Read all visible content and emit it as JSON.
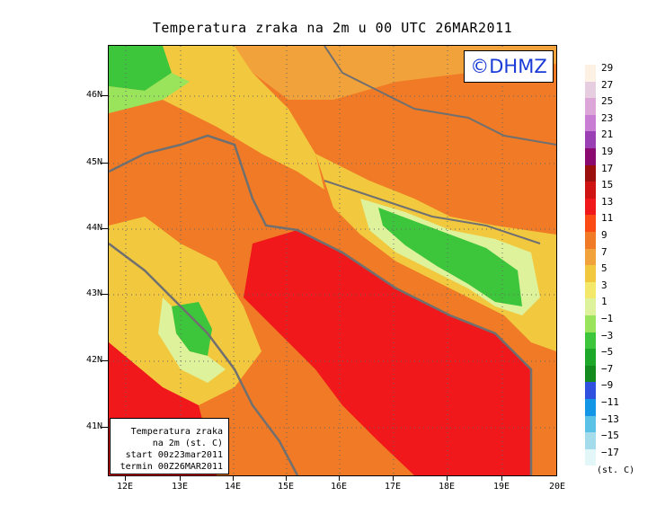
{
  "title": "Temperatura zraka na 2m u 00 UTC 26MAR2011",
  "logo": "©DHMZ",
  "info": [
    "Temperatura zraka",
    "na 2m (st. C)",
    "start 00z23mar2011",
    "termin 00Z26MAR2011"
  ],
  "lat_labels": [
    "46N",
    "45N",
    "44N",
    "43N",
    "42N",
    "41N"
  ],
  "lon_labels": [
    "12E",
    "13E",
    "14E",
    "15E",
    "16E",
    "17E",
    "18E",
    "19E",
    "20E"
  ],
  "legend": {
    "unit": "(st. C)",
    "levels": [
      "29",
      "27",
      "25",
      "23",
      "21",
      "19",
      "17",
      "15",
      "13",
      "11",
      "9",
      "7",
      "5",
      "3",
      "1",
      "−1",
      "−3",
      "−5",
      "−7",
      "−9",
      "−11",
      "−13",
      "−15",
      "−17"
    ],
    "colors": [
      "#fdf1e3",
      "#e6cde0",
      "#dda6d9",
      "#c77ed3",
      "#9b3fb4",
      "#8a0a6f",
      "#9c0f0f",
      "#cf1212",
      "#f0181a",
      "#fb4a13",
      "#f07a25",
      "#f2a23a",
      "#f2c83e",
      "#f3e86a",
      "#ddf29a",
      "#9ae45c",
      "#3dc63c",
      "#1ea82a",
      "#128a1e",
      "#3050e0",
      "#1496e6",
      "#5cc1e6",
      "#a4dcec",
      "#e4f7f8"
    ]
  }
}
